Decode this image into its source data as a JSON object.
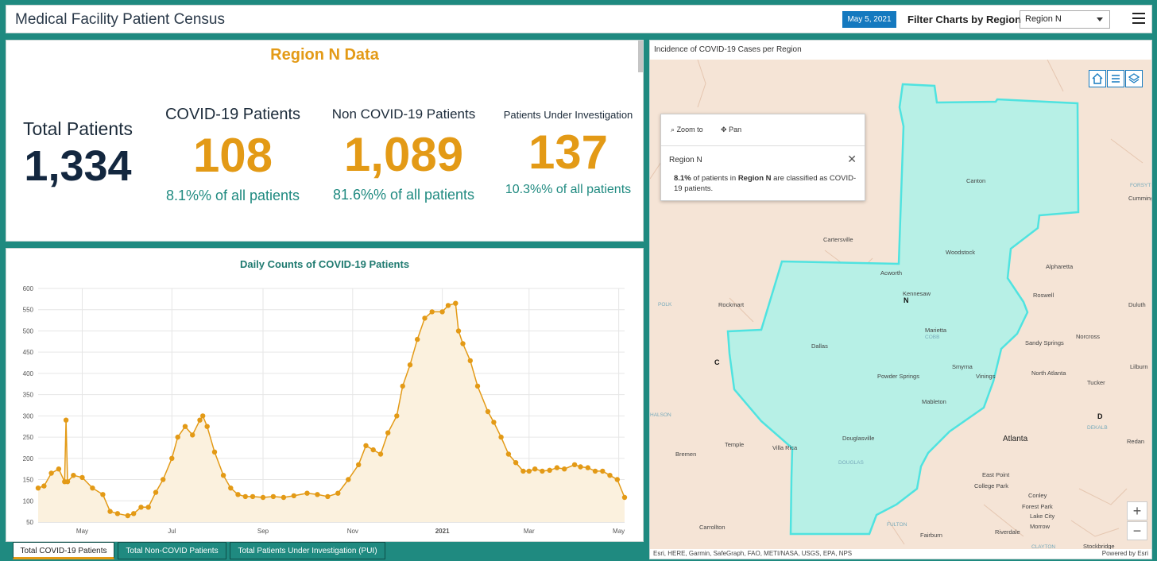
{
  "header": {
    "title": "Medical Facility Patient Census",
    "date_button": "May 5, 2021",
    "filter_label": "Filter Charts by Region",
    "region_select": "Region N"
  },
  "stats": {
    "heading": "Region N Data",
    "total": {
      "label": "Total Patients",
      "value": "1,334"
    },
    "covid": {
      "label": "COVID-19 Patients",
      "value": "108",
      "pct": "8.1%% of all patients"
    },
    "noncovid": {
      "label": "Non COVID-19 Patients",
      "value": "1,089",
      "pct": "81.6%% of all patients"
    },
    "pui": {
      "label": "Patients Under Investigation",
      "value": "137",
      "pct": "10.3%% of all patients"
    }
  },
  "chart_title": "Daily Counts of COVID-19 Patients",
  "chart_data": {
    "type": "area",
    "title": "Daily Counts of COVID-19 Patients",
    "ylim": [
      50,
      600
    ],
    "yticks": [
      50,
      100,
      150,
      200,
      250,
      300,
      350,
      400,
      450,
      500,
      550,
      600
    ],
    "xtick_labels": [
      {
        "label": "May",
        "x": "2020-05-01"
      },
      {
        "label": "Jul",
        "x": "2020-07-01"
      },
      {
        "label": "Sep",
        "x": "2020-09-01"
      },
      {
        "label": "Nov",
        "x": "2020-11-01"
      },
      {
        "label": "2021",
        "x": "2021-01-01",
        "bold": true
      },
      {
        "label": "Mar",
        "x": "2021-03-01"
      },
      {
        "label": "May",
        "x": "2021-05-01"
      }
    ],
    "xlim": [
      "2020-04-01",
      "2021-05-05"
    ],
    "series": [
      {
        "x": [
          "2020-04-01",
          "2020-04-05",
          "2020-04-10",
          "2020-04-15",
          "2020-04-19",
          "2020-04-20",
          "2020-04-21",
          "2020-04-25",
          "2020-05-01",
          "2020-05-08",
          "2020-05-15",
          "2020-05-20",
          "2020-05-25",
          "2020-06-01",
          "2020-06-05",
          "2020-06-10",
          "2020-06-15",
          "2020-06-20",
          "2020-06-25",
          "2020-07-01",
          "2020-07-05",
          "2020-07-10",
          "2020-07-15",
          "2020-07-20",
          "2020-07-22",
          "2020-07-25",
          "2020-07-30",
          "2020-08-05",
          "2020-08-10",
          "2020-08-15",
          "2020-08-20",
          "2020-08-25",
          "2020-09-01",
          "2020-09-08",
          "2020-09-15",
          "2020-09-22",
          "2020-10-01",
          "2020-10-08",
          "2020-10-15",
          "2020-10-22",
          "2020-10-29",
          "2020-11-05",
          "2020-11-10",
          "2020-11-15",
          "2020-11-20",
          "2020-11-25",
          "2020-12-01",
          "2020-12-05",
          "2020-12-10",
          "2020-12-15",
          "2020-12-20",
          "2020-12-25",
          "2021-01-01",
          "2021-01-05",
          "2021-01-10",
          "2021-01-12",
          "2021-01-15",
          "2021-01-20",
          "2021-01-25",
          "2021-02-01",
          "2021-02-05",
          "2021-02-10",
          "2021-02-15",
          "2021-02-20",
          "2021-02-25",
          "2021-03-01",
          "2021-03-05",
          "2021-03-10",
          "2021-03-15",
          "2021-03-20",
          "2021-03-25",
          "2021-04-01",
          "2021-04-05",
          "2021-04-10",
          "2021-04-15",
          "2021-04-20",
          "2021-04-25",
          "2021-04-30",
          "2021-05-05"
        ],
        "y": [
          130,
          135,
          165,
          175,
          145,
          290,
          145,
          160,
          155,
          130,
          115,
          75,
          70,
          65,
          70,
          85,
          85,
          120,
          150,
          200,
          250,
          275,
          255,
          290,
          300,
          275,
          215,
          160,
          130,
          115,
          110,
          110,
          108,
          110,
          108,
          112,
          118,
          115,
          110,
          118,
          150,
          185,
          230,
          220,
          210,
          260,
          300,
          370,
          420,
          480,
          530,
          545,
          545,
          560,
          565,
          500,
          470,
          430,
          370,
          310,
          285,
          250,
          210,
          190,
          170,
          170,
          175,
          170,
          172,
          178,
          175,
          185,
          180,
          178,
          170,
          170,
          160,
          150,
          108
        ]
      }
    ]
  },
  "tabs": [
    {
      "label": "Total COVID-19 Patients",
      "active": true
    },
    {
      "label": "Total Non-COVID Patients",
      "active": false
    },
    {
      "label": "Total Patients Under Investigation (PUI)",
      "active": false
    }
  ],
  "map": {
    "title": "Incidence of COVID-19 Cases per Region",
    "popup": {
      "zoom_to": "Zoom to",
      "pan": "Pan",
      "title": "Region N",
      "pct": "8.1%",
      "text1": " of patients in ",
      "region": "Region N",
      "text2": " are classified as COVID-19 patients."
    },
    "attribution": "Esri, HERE, Garmin, SafeGraph, FAO, METI/NASA, USGS, EPA, NPS",
    "powered_by": "Powered by Esri",
    "region_color": "#b7f0e6",
    "region_border": "#4fe3e0",
    "places": [
      {
        "name": "Canton",
        "big": false
      },
      {
        "name": "Cumming",
        "big": false
      },
      {
        "name": "FORSYTH",
        "big": false,
        "county": true
      },
      {
        "name": "Cartersville",
        "big": false
      },
      {
        "name": "Woodstock",
        "big": false
      },
      {
        "name": "Alpharetta",
        "big": false
      },
      {
        "name": "Acworth",
        "big": false
      },
      {
        "name": "Kennesaw",
        "big": false
      },
      {
        "name": "Roswell",
        "big": false
      },
      {
        "name": "Rockmart",
        "big": false
      },
      {
        "name": "POLK",
        "big": false,
        "county": true
      },
      {
        "name": "Duluth",
        "big": false
      },
      {
        "name": "Marietta",
        "big": false
      },
      {
        "name": "COBB",
        "big": false,
        "county": true
      },
      {
        "name": "Norcross",
        "big": false
      },
      {
        "name": "Dallas",
        "big": false
      },
      {
        "name": "Sandy Springs",
        "big": false
      },
      {
        "name": "Smyrna",
        "big": false
      },
      {
        "name": "Vinings",
        "big": false
      },
      {
        "name": "Lilburn",
        "big": false
      },
      {
        "name": "Powder Springs",
        "big": false
      },
      {
        "name": "North Atlanta",
        "big": false
      },
      {
        "name": "Tucker",
        "big": false
      },
      {
        "name": "Mableton",
        "big": false
      },
      {
        "name": "Atlanta",
        "big": true
      },
      {
        "name": "DEKALB",
        "big": false,
        "county": true
      },
      {
        "name": "Redan",
        "big": false
      },
      {
        "name": "Bremen",
        "big": false
      },
      {
        "name": "Temple",
        "big": false
      },
      {
        "name": "Villa Rica",
        "big": false
      },
      {
        "name": "Douglasville",
        "big": false
      },
      {
        "name": "DOUGLAS",
        "big": false,
        "county": true
      },
      {
        "name": "East Point",
        "big": false
      },
      {
        "name": "College Park",
        "big": false
      },
      {
        "name": "Conley",
        "big": false
      },
      {
        "name": "Forest Park",
        "big": false
      },
      {
        "name": "Lake City",
        "big": false
      },
      {
        "name": "Morrow",
        "big": false
      },
      {
        "name": "Carrollton",
        "big": false
      },
      {
        "name": "FULTON",
        "big": false,
        "county": true
      },
      {
        "name": "Fairburn",
        "big": false
      },
      {
        "name": "Riverdale",
        "big": false
      },
      {
        "name": "Stockbridge",
        "big": false
      },
      {
        "name": "HALSON",
        "big": false,
        "county": true
      },
      {
        "name": "CLAYTON",
        "big": false,
        "county": true
      }
    ],
    "region_letters": [
      "N",
      "C",
      "D"
    ]
  }
}
